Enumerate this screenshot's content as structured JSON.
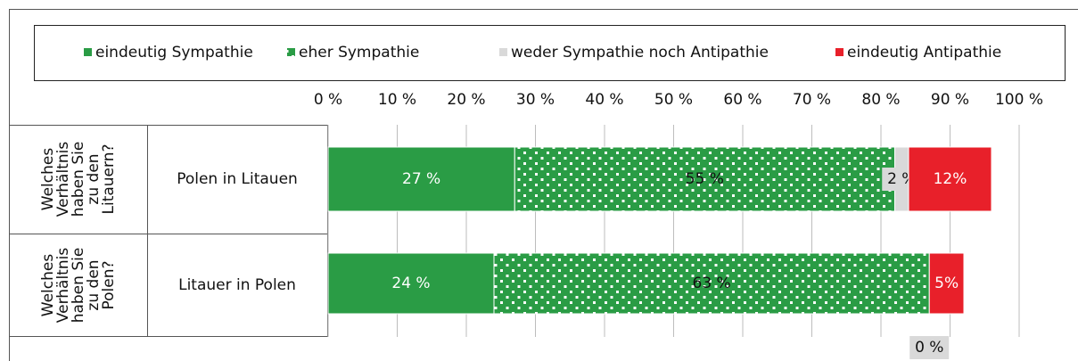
{
  "chart_data": {
    "type": "stacked-bar-horizontal",
    "groups": [
      [
        "Welches",
        "Verhältnis",
        "haben Sie",
        "zu den",
        "Litauern?"
      ],
      [
        "Welches",
        "Verhältnis",
        "haben Sie",
        "zu den",
        "Polen?"
      ]
    ],
    "categories": [
      "Polen in Litauen",
      "Litauer in Polen"
    ],
    "series": [
      {
        "name": "eindeutig Sympathie",
        "color": "#2a9c45",
        "values": [
          27,
          24
        ],
        "value_labels": [
          "27 %",
          "24 %"
        ]
      },
      {
        "name": "eher Sympathie",
        "color": "#2a9c45",
        "pattern": "dots",
        "values": [
          55,
          63
        ],
        "value_labels": [
          "55 %",
          "63 %"
        ]
      },
      {
        "name": "weder Sympathie noch Antipathie",
        "color": "#d9d9d9",
        "values": [
          2,
          0
        ],
        "value_labels": [
          "2 %",
          "0 %"
        ]
      },
      {
        "name": "eindeutig Antipathie",
        "color": "#e8202a",
        "values": [
          12,
          5
        ],
        "value_labels": [
          "12%",
          "5%"
        ]
      }
    ],
    "xlim": [
      0,
      100
    ],
    "xticks": [
      {
        "value": 0,
        "label": "0 %"
      },
      {
        "value": 10,
        "label": "10 %"
      },
      {
        "value": 20,
        "label": "20 %"
      },
      {
        "value": 30,
        "label": "30 %"
      },
      {
        "value": 40,
        "label": "40 %"
      },
      {
        "value": 50,
        "label": "50 %"
      },
      {
        "value": 60,
        "label": "60 %"
      },
      {
        "value": 70,
        "label": "70 %"
      },
      {
        "value": 80,
        "label": "80 %"
      },
      {
        "value": 90,
        "label": "90 %"
      },
      {
        "value": 100,
        "label": "100 %"
      }
    ],
    "grid": true
  }
}
